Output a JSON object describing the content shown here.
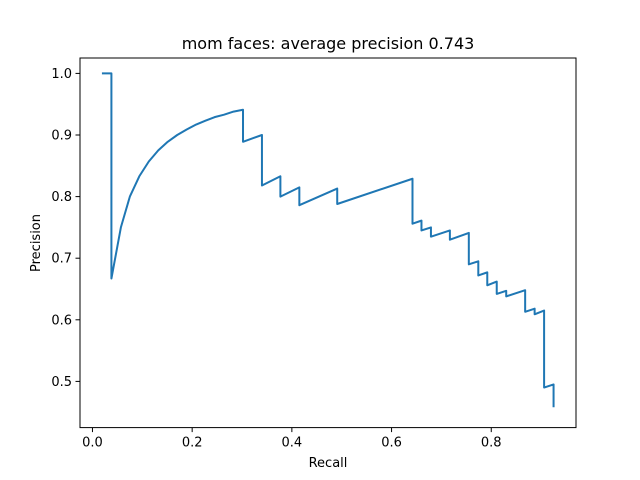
{
  "chart_data": {
    "type": "line",
    "title": "mom faces: average precision 0.743",
    "xlabel": "Recall",
    "ylabel": "Precision",
    "xlim": [
      -0.025,
      0.97
    ],
    "ylim": [
      0.425,
      1.025
    ],
    "xticks": [
      0.0,
      0.2,
      0.4,
      0.6,
      0.8
    ],
    "xtick_labels": [
      "0.0",
      "0.2",
      "0.4",
      "0.6",
      "0.8"
    ],
    "yticks": [
      0.5,
      0.6,
      0.7,
      0.8,
      0.9,
      1.0
    ],
    "ytick_labels": [
      "0.5",
      "0.6",
      "0.7",
      "0.8",
      "0.9",
      "1.0"
    ],
    "grid": false,
    "series": [
      {
        "color": "#1f77b4",
        "x": [
          0.019,
          0.038,
          0.038,
          0.057,
          0.075,
          0.094,
          0.113,
          0.132,
          0.151,
          0.17,
          0.189,
          0.208,
          0.226,
          0.245,
          0.264,
          0.283,
          0.302,
          0.302,
          0.34,
          0.34,
          0.377,
          0.377,
          0.415,
          0.415,
          0.491,
          0.491,
          0.642,
          0.642,
          0.66,
          0.66,
          0.679,
          0.679,
          0.717,
          0.717,
          0.755,
          0.755,
          0.774,
          0.774,
          0.792,
          0.792,
          0.811,
          0.811,
          0.83,
          0.83,
          0.868,
          0.868,
          0.887,
          0.887,
          0.906,
          0.906,
          0.925,
          0.925
        ],
        "y": [
          1.0,
          1.0,
          0.667,
          0.75,
          0.8,
          0.833,
          0.857,
          0.875,
          0.889,
          0.9,
          0.909,
          0.917,
          0.923,
          0.929,
          0.933,
          0.938,
          0.941,
          0.889,
          0.9,
          0.818,
          0.833,
          0.8,
          0.815,
          0.786,
          0.813,
          0.788,
          0.829,
          0.756,
          0.761,
          0.745,
          0.75,
          0.735,
          0.745,
          0.73,
          0.741,
          0.69,
          0.695,
          0.672,
          0.677,
          0.656,
          0.662,
          0.642,
          0.647,
          0.638,
          0.648,
          0.613,
          0.618,
          0.609,
          0.615,
          0.49,
          0.495,
          0.458
        ]
      }
    ]
  }
}
